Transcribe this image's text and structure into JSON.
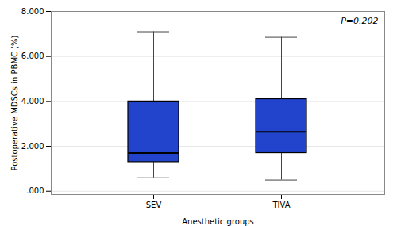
{
  "chart_data": {
    "type": "box",
    "categories": [
      "SEV",
      "TIVA"
    ],
    "whisker_low": [
      0.6,
      0.5
    ],
    "q1": [
      1.3,
      1.7
    ],
    "median": [
      1.7,
      2.65
    ],
    "q3": [
      4.0,
      4.1
    ],
    "whisker_high": [
      7.1,
      6.85
    ],
    "color": "#2244cc",
    "xlabel": "Anesthetic groups",
    "ylabel": "Postoperative MDSCs in PBMC (%)",
    "ylim": [
      -0.15,
      8.0
    ],
    "yticks": [
      {
        "value": 0.0,
        "label": ".000"
      },
      {
        "value": 2.0,
        "label": "2.000"
      },
      {
        "value": 4.0,
        "label": "4.000"
      },
      {
        "value": 6.0,
        "label": "6.000"
      },
      {
        "value": 8.0,
        "label": "8.000"
      }
    ],
    "grid": true,
    "annotation": "P=0.202"
  }
}
